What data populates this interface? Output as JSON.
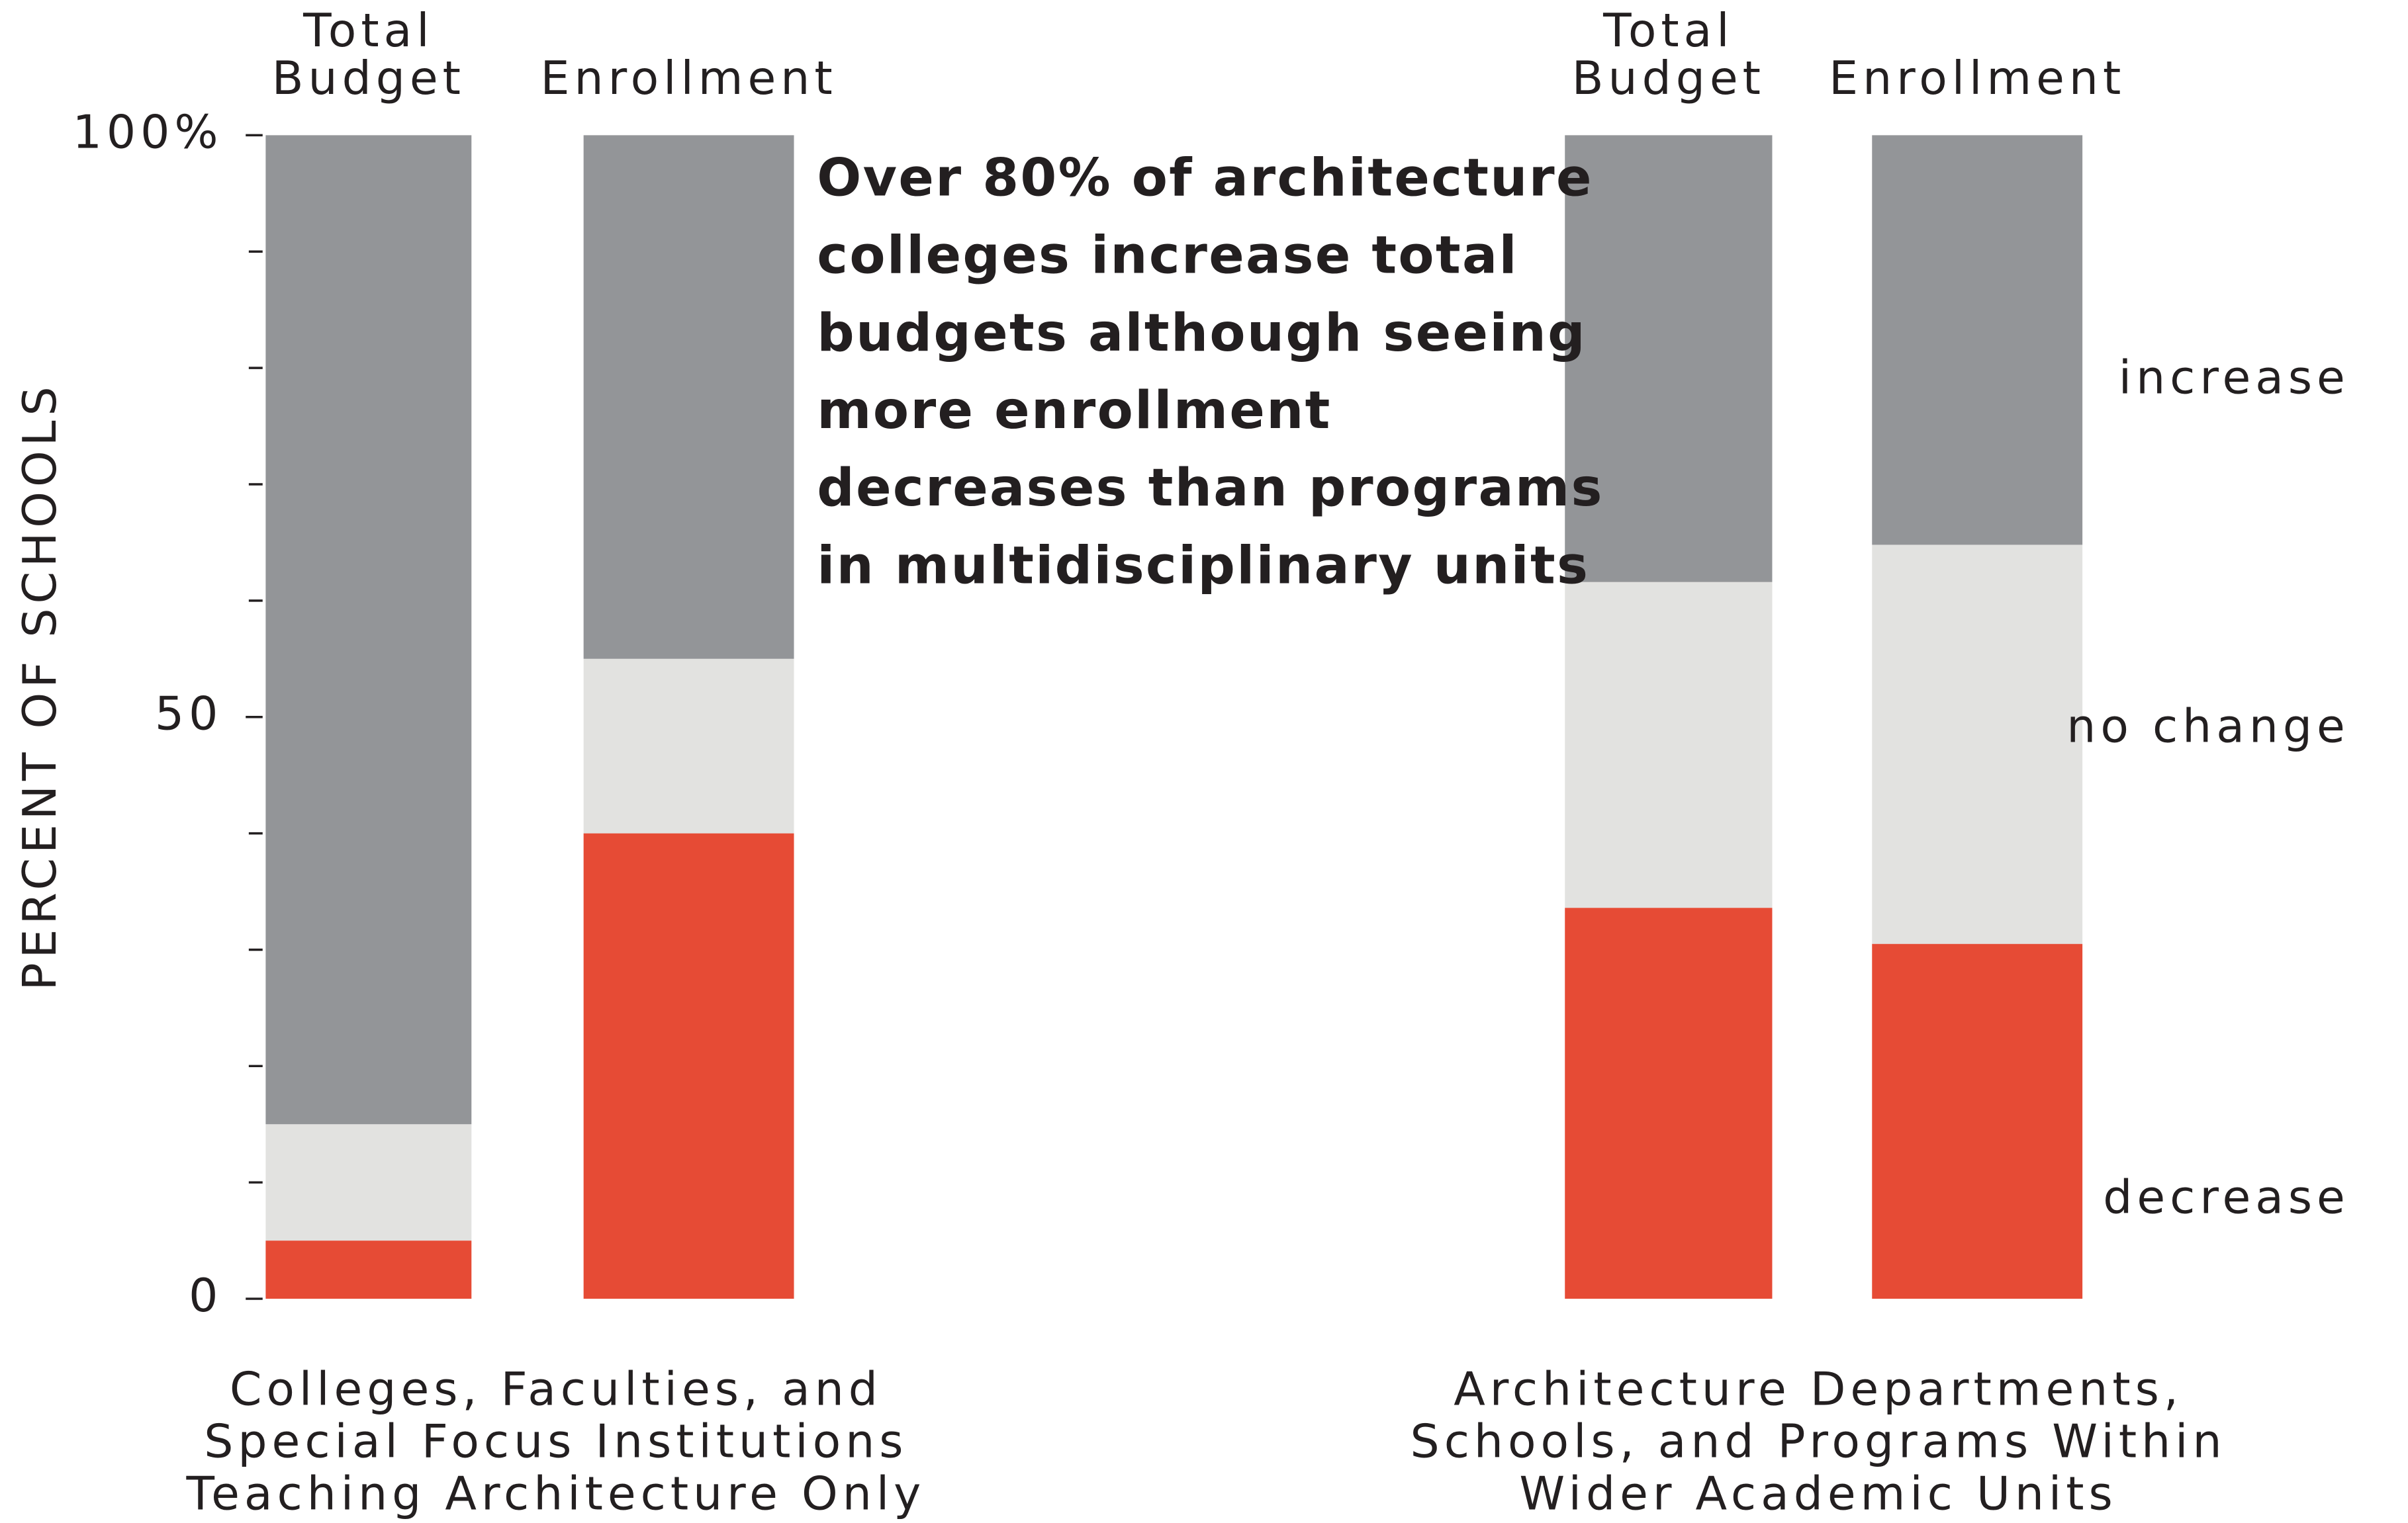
{
  "chart_data": {
    "type": "stacked_bar",
    "y_label": "PERCENT OF SCHOOLS",
    "annotation": [
      "Over 80% of architecture",
      "colleges increase total",
      "budgets although seeing",
      "more enrollment",
      "decreases than programs",
      "in multidisciplinary units"
    ],
    "categories": [
      "Total Budget",
      "Enrollment",
      "Total Budget",
      "Enrollment"
    ],
    "groups": [
      [
        "Colleges, Faculties, and",
        "Special Focus Institutions",
        "Teaching Architecture Only"
      ],
      [
        "Architecture Departments,",
        "Schools, and Programs Within",
        "Wider Academic Units"
      ]
    ],
    "series": [
      {
        "name": "decrease",
        "color": "#e64b35",
        "values": [
          5,
          40,
          33.6,
          30.5
        ]
      },
      {
        "name": "no change",
        "color": "#e2e2e0",
        "values": [
          10,
          15,
          28,
          34.3
        ]
      },
      {
        "name": "increase",
        "color": "#939598",
        "values": [
          85,
          45,
          38.4,
          35.2
        ]
      }
    ],
    "ylim": [
      0,
      100
    ],
    "yticks": [
      0,
      50,
      {
        "value": 100,
        "label": "100%"
      }
    ],
    "minor_yticks": [
      10,
      20,
      30,
      40,
      60,
      70,
      80,
      90
    ]
  }
}
